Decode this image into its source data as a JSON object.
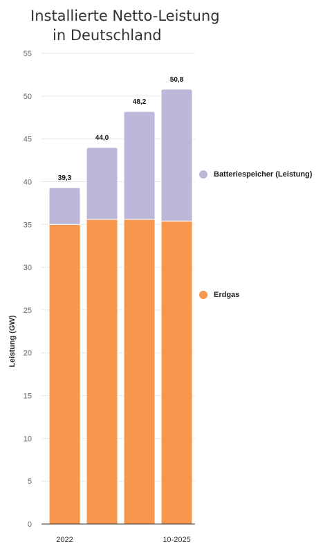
{
  "chart_data": {
    "type": "bar",
    "stacked": true,
    "title_lines": [
      "Installierte Netto-Leistung",
      "in Deutschland"
    ],
    "ylabel": "Leistung (GW)",
    "xlabel": "",
    "ylim": [
      0,
      55
    ],
    "yticks": [
      0,
      5,
      10,
      15,
      20,
      25,
      30,
      35,
      40,
      45,
      50,
      55
    ],
    "categories": [
      "2022",
      "",
      "",
      "10-2025"
    ],
    "series": [
      {
        "name": "Erdgas",
        "color": "#f7974d",
        "values": [
          35.0,
          35.6,
          35.6,
          35.4
        ]
      },
      {
        "name": "Batteriespeicher (Leistung)",
        "color": "#bcb8d9",
        "values": [
          4.3,
          8.4,
          12.6,
          15.4
        ]
      }
    ],
    "totals": [
      "39,3",
      "44,0",
      "48,2",
      "50,8"
    ],
    "grid": true,
    "legend": "right"
  }
}
